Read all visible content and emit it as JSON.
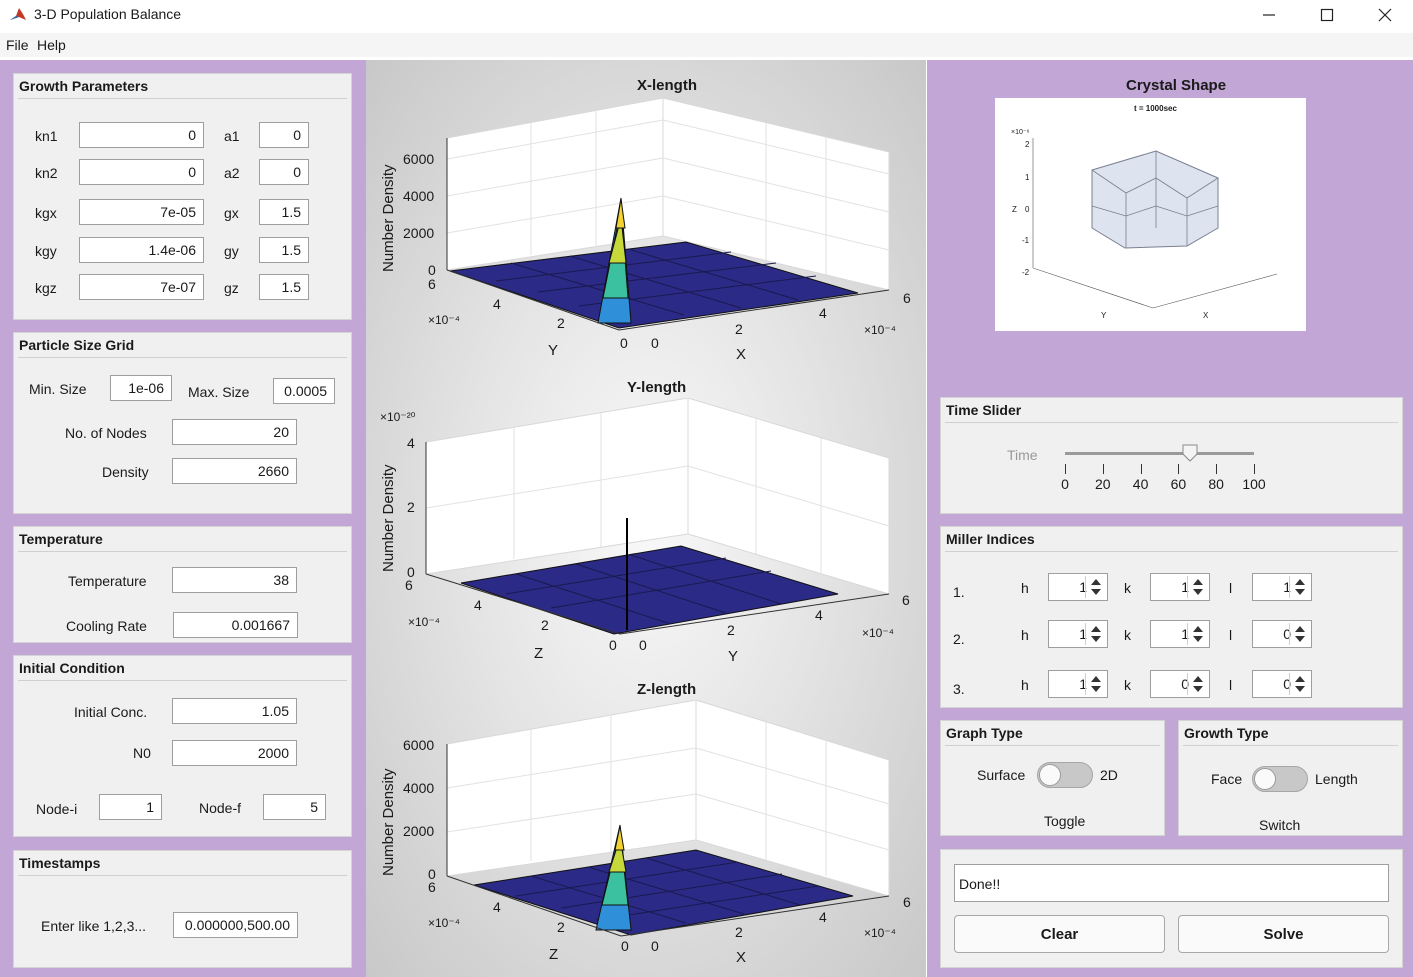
{
  "window": {
    "title": "3-D Population Balance"
  },
  "menu": {
    "file": "File",
    "help": "Help"
  },
  "growth": {
    "title": "Growth Parameters",
    "rows": [
      {
        "l1": "kn1",
        "v1": "0",
        "l2": "a1",
        "v2": "0"
      },
      {
        "l1": "kn2",
        "v1": "0",
        "l2": "a2",
        "v2": "0"
      },
      {
        "l1": "kgx",
        "v1": "7e-05",
        "l2": "gx",
        "v2": "1.5"
      },
      {
        "l1": "kgy",
        "v1": "1.4e-06",
        "l2": "gy",
        "v2": "1.5"
      },
      {
        "l1": "kgz",
        "v1": "7e-07",
        "l2": "gz",
        "v2": "1.5"
      }
    ]
  },
  "grid": {
    "title": "Particle Size Grid",
    "min_label": "Min. Size",
    "min_value": "1e-06",
    "max_label": "Max. Size",
    "max_value": "0.0005",
    "nodes_label": "No. of Nodes",
    "nodes_value": "20",
    "density_label": "Density",
    "density_value": "2660"
  },
  "temperature": {
    "title": "Temperature",
    "temp_label": "Temperature",
    "temp_value": "38",
    "cool_label": "Cooling Rate",
    "cool_value": "0.001667"
  },
  "initial": {
    "title": "Initial Condition",
    "conc_label": "Initial Conc.",
    "conc_value": "1.05",
    "n0_label": "N0",
    "n0_value": "2000",
    "nodei_label": "Node-i",
    "nodei_value": "1",
    "nodef_label": "Node-f",
    "nodef_value": "5"
  },
  "timestamps": {
    "title": "Timestamps",
    "label": "Enter like 1,2,3...",
    "value": "0.000000,500.00"
  },
  "plots": [
    {
      "title": "X-length",
      "zlabel": "Number Density",
      "zticks": [
        "6000",
        "4000",
        "2000",
        "0"
      ],
      "exp": "",
      "left_axis": "Y",
      "right_axis": "X",
      "left_ticks": [
        "6",
        "4",
        "2",
        "0"
      ],
      "right_ticks": [
        "0",
        "2",
        "4",
        "6"
      ],
      "left_exp": "×10⁻⁴",
      "right_exp": "×10⁻⁴"
    },
    {
      "title": "Y-length",
      "zlabel": "Number Density",
      "zticks": [
        "4",
        "2",
        "0"
      ],
      "exp": "×10⁻²⁰",
      "left_axis": "Z",
      "right_axis": "Y",
      "left_ticks": [
        "6",
        "4",
        "2",
        "0"
      ],
      "right_ticks": [
        "0",
        "2",
        "4",
        "6"
      ],
      "left_exp": "×10⁻⁴",
      "right_exp": "×10⁻⁴"
    },
    {
      "title": "Z-length",
      "zlabel": "Number Density",
      "zticks": [
        "6000",
        "4000",
        "2000",
        "0"
      ],
      "exp": "",
      "left_axis": "Z",
      "right_axis": "X",
      "left_ticks": [
        "6",
        "4",
        "2",
        "0"
      ],
      "right_ticks": [
        "0",
        "2",
        "4",
        "6"
      ],
      "left_exp": "×10⁻⁴",
      "right_exp": "×10⁻⁴"
    }
  ],
  "crystal": {
    "title": "Crystal Shape",
    "time_label": "t = 1000sec",
    "ax_exp": "×10⁻⁶",
    "z_ticks": [
      "2",
      "1",
      "0",
      "-1",
      "-2"
    ],
    "x_label": "X",
    "y_label": "Y",
    "z_label": "Z"
  },
  "time_slider": {
    "title": "Time Slider",
    "label": "Time",
    "value": 70,
    "ticks": [
      "0",
      "20",
      "40",
      "60",
      "80",
      "100"
    ]
  },
  "miller": {
    "title": "Miller Indices",
    "rows": [
      {
        "n": "1.",
        "h": "1",
        "k": "1",
        "l": "1"
      },
      {
        "n": "2.",
        "h": "1",
        "k": "1",
        "l": "0"
      },
      {
        "n": "3.",
        "h": "1",
        "k": "0",
        "l": "0"
      }
    ],
    "h_label": "h",
    "k_label": "k",
    "l_label": "l"
  },
  "graph_type": {
    "title": "Graph Type",
    "left": "Surface",
    "right": "2D",
    "caption": "Toggle"
  },
  "growth_type": {
    "title": "Growth Type",
    "left": "Face",
    "right": "Length",
    "caption": "Switch"
  },
  "status": {
    "text": "Done!!"
  },
  "buttons": {
    "clear": "Clear",
    "solve": "Solve"
  },
  "colors": {
    "accent_purple": "#c2a6d5",
    "surface_blue": "#2b2a86"
  }
}
